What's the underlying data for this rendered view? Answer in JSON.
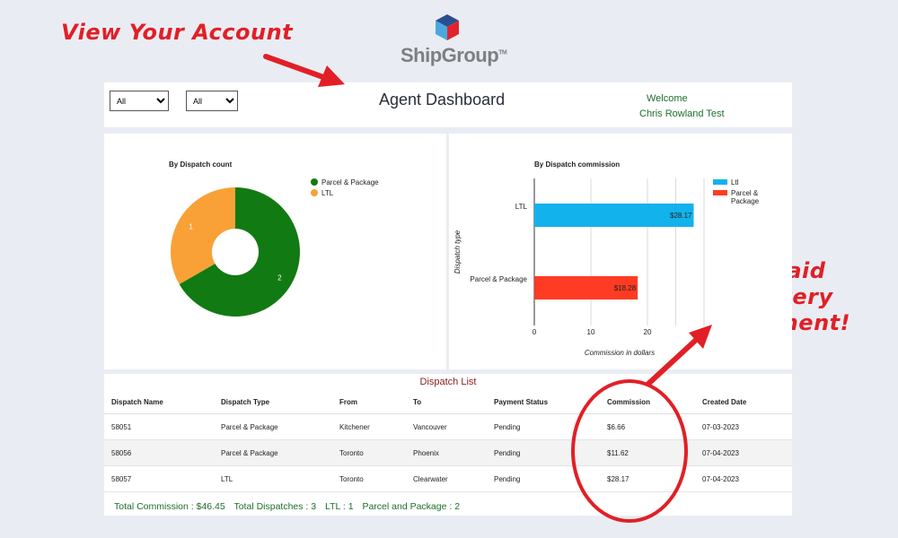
{
  "promo": {
    "view_account": "View Your Account",
    "get_paid": [
      "Get Paid",
      "On Every",
      "Shipment!"
    ],
    "color": "#e21f26"
  },
  "logo": {
    "text": "ShipGroup",
    "tm": "TM"
  },
  "header": {
    "filters": [
      {
        "selected": "All",
        "options": [
          "All"
        ]
      },
      {
        "selected": "All",
        "options": [
          "All"
        ]
      }
    ],
    "title": "Agent Dashboard",
    "welcome_label": "Welcome",
    "user_name": "Chris Rowland Test"
  },
  "donut_chart": {
    "chart_data": {
      "type": "pie",
      "title": "By Dispatch count",
      "slices": [
        {
          "label": "Parcel & Package",
          "value": 2,
          "color": "#127a12"
        },
        {
          "label": "LTL",
          "value": 1,
          "color": "#f9a137"
        }
      ],
      "legend_placement": "top-right"
    }
  },
  "bar_chart": {
    "chart_data": {
      "type": "bar",
      "orientation": "horizontal",
      "title": "By Dispatch commission",
      "xlabel": "Commission in dollars",
      "ylabel": "Dispatch type",
      "categories": [
        "LTL",
        "Parcel & Package"
      ],
      "values": [
        28.17,
        18.28
      ],
      "value_labels": [
        "$28.17",
        "$18.28"
      ],
      "colors": [
        "#12b2ec",
        "#ff3b24"
      ],
      "xlim": [
        0,
        30
      ],
      "xticks": [
        0,
        10,
        20
      ],
      "grid": true,
      "legend": [
        {
          "label": "Ltl",
          "color": "#12b2ec"
        },
        {
          "label": "Parcel & Package",
          "color": "#ff3b24"
        }
      ],
      "legend_placement": "top-right"
    }
  },
  "dispatch_list": {
    "title": "Dispatch List",
    "columns": [
      "Dispatch Name",
      "Dispatch Type",
      "From",
      "To",
      "Payment Status",
      "Commission",
      "Created Date"
    ],
    "rows": [
      [
        "58051",
        "Parcel & Package",
        "Kitchener",
        "Vancouver",
        "Pending",
        "$6.66",
        "07-03-2023"
      ],
      [
        "58056",
        "Parcel & Package",
        "Toronto",
        "Phoenix",
        "Pending",
        "$11.62",
        "07-04-2023"
      ],
      [
        "58057",
        "LTL",
        "Toronto",
        "Clearwater",
        "Pending",
        "$28.17",
        "07-04-2023"
      ]
    ],
    "totals": {
      "commission": "Total Commission : $46.45",
      "dispatches": "Total Dispatches : 3",
      "ltl": "LTL : 1",
      "parcel": "Parcel and Package : 2"
    }
  }
}
